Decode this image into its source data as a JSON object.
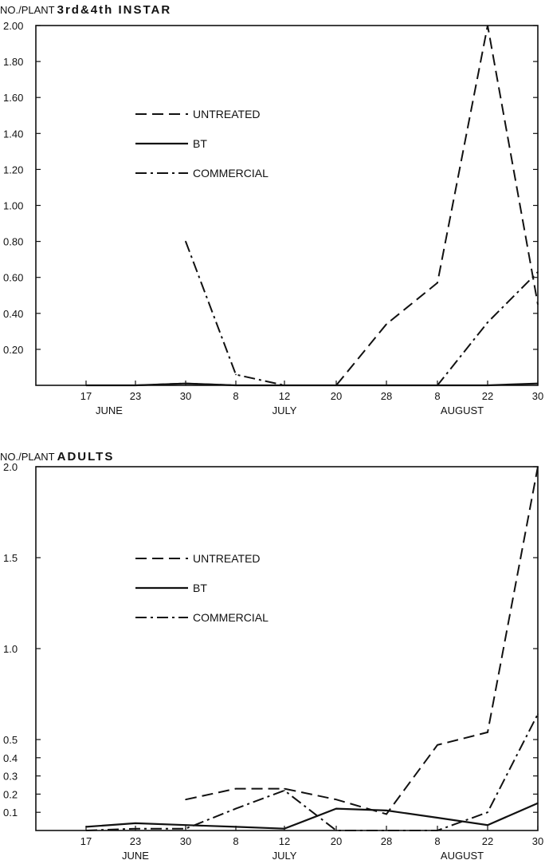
{
  "chart_data": [
    {
      "type": "line",
      "ylabel": "NO./PLANT",
      "title": "3rd&4th INSTAR",
      "x_ticks": [
        "17",
        "23",
        "30",
        "8",
        "12",
        "20",
        "28",
        "8",
        "22",
        "30"
      ],
      "month_labels": [
        "JUNE",
        "JULY",
        "AUGUST"
      ],
      "ylim": [
        0,
        2.0
      ],
      "y_ticks": [
        "0.20",
        "0.40",
        "0.60",
        "0.80",
        "1.00",
        "1.20",
        "1.40",
        "1.60",
        "1.80",
        "2.00"
      ],
      "y_tick_values": [
        0.2,
        0.4,
        0.6,
        0.8,
        1.0,
        1.2,
        1.4,
        1.6,
        1.8,
        2.0
      ],
      "legend": [
        "UNTREATED",
        "BT",
        "COMMERCIAL"
      ],
      "legend_position": "center-left",
      "grid": false,
      "series": [
        {
          "name": "UNTREATED",
          "style": "dashed",
          "x": [
            0,
            1,
            2,
            3,
            4,
            5,
            6,
            7,
            8,
            9
          ],
          "values": [
            0,
            0,
            0.01,
            0,
            0,
            0,
            0.34,
            0.57,
            2.0,
            0.45
          ]
        },
        {
          "name": "BT",
          "style": "solid",
          "x": [
            0,
            1,
            2,
            3,
            4,
            5,
            6,
            7,
            8,
            9
          ],
          "values": [
            0,
            0,
            0.01,
            0,
            0,
            0,
            0,
            0,
            0,
            0.01
          ]
        },
        {
          "name": "COMMERCIAL",
          "style": "dashdot",
          "x": [
            2,
            3,
            4,
            5,
            6,
            7,
            8,
            9
          ],
          "values": [
            0.8,
            0.06,
            0,
            0,
            0,
            0,
            0.35,
            0.63
          ]
        }
      ]
    },
    {
      "type": "line",
      "ylabel": "NO./PLANT",
      "title": "ADULTS",
      "x_ticks": [
        "17",
        "23",
        "30",
        "8",
        "12",
        "20",
        "28",
        "8",
        "22",
        "30"
      ],
      "month_labels": [
        "JUNE",
        "JULY",
        "AUGUST"
      ],
      "ylim": [
        0,
        2.0
      ],
      "y_ticks": [
        "0.1",
        "0.2",
        "0.3",
        "0.4",
        "0.5",
        "1.0",
        "1.5",
        "2.0"
      ],
      "y_tick_values": [
        0.1,
        0.2,
        0.3,
        0.4,
        0.5,
        1.0,
        1.5,
        2.0
      ],
      "legend": [
        "UNTREATED",
        "BT",
        "COMMERCIAL"
      ],
      "legend_position": "center-left",
      "grid": false,
      "series": [
        {
          "name": "UNTREATED",
          "style": "dashed",
          "x": [
            2,
            3,
            4,
            5,
            6,
            7,
            8,
            9
          ],
          "values": [
            0.17,
            0.23,
            0.23,
            0.17,
            0.09,
            0.47,
            0.54,
            2.0
          ]
        },
        {
          "name": "BT",
          "style": "solid",
          "x": [
            0,
            1,
            2,
            3,
            4,
            5,
            6,
            7,
            8,
            9
          ],
          "values": [
            0.02,
            0.04,
            0.03,
            0.02,
            0.01,
            0.12,
            0.11,
            0.07,
            0.03,
            0.15
          ]
        },
        {
          "name": "COMMERCIAL",
          "style": "dashdot",
          "x": [
            0,
            1,
            2,
            3,
            4,
            5,
            6,
            7,
            8,
            9
          ],
          "values": [
            0,
            0.01,
            0.01,
            0.12,
            0.22,
            0,
            0,
            0,
            0.1,
            0.64
          ]
        }
      ]
    }
  ]
}
